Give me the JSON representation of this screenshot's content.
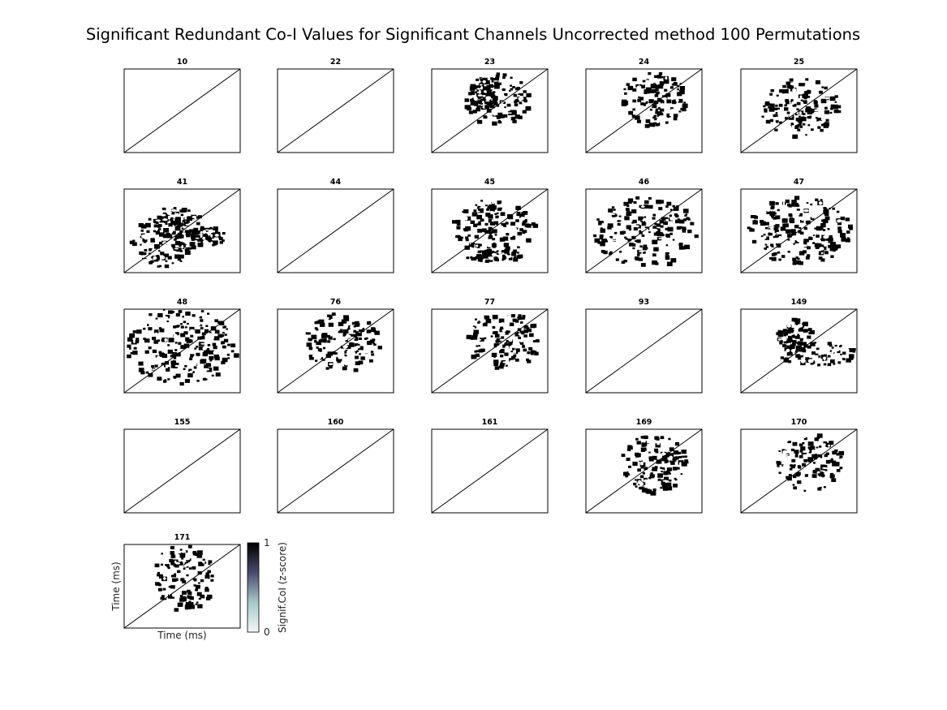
{
  "figure": {
    "title": "Significant Redundant Co-I Values for Significant Channels Uncorrected method 100 Permutations"
  },
  "chart_data": {
    "type": "heatmap",
    "title": "Significant Redundant Co-I Values for Significant Channels Uncorrected method 100 Permutations",
    "xlabel": "Time (ms)",
    "ylabel": "Time (ms)",
    "diagonal_line": true,
    "panels": [
      {
        "channel": "10",
        "significant": false
      },
      {
        "channel": "22",
        "significant": false
      },
      {
        "channel": "23",
        "significant": true
      },
      {
        "channel": "24",
        "significant": true
      },
      {
        "channel": "25",
        "significant": true
      },
      {
        "channel": "41",
        "significant": true
      },
      {
        "channel": "44",
        "significant": false
      },
      {
        "channel": "45",
        "significant": true
      },
      {
        "channel": "46",
        "significant": true
      },
      {
        "channel": "47",
        "significant": true
      },
      {
        "channel": "48",
        "significant": true
      },
      {
        "channel": "76",
        "significant": true
      },
      {
        "channel": "77",
        "significant": true
      },
      {
        "channel": "93",
        "significant": false
      },
      {
        "channel": "149",
        "significant": true
      },
      {
        "channel": "155",
        "significant": false
      },
      {
        "channel": "160",
        "significant": false
      },
      {
        "channel": "161",
        "significant": false
      },
      {
        "channel": "169",
        "significant": true
      },
      {
        "channel": "170",
        "significant": true
      },
      {
        "channel": "171",
        "significant": true
      }
    ],
    "colorbar": {
      "label": "Signif.CoI (z-score)",
      "ticks": [
        "0",
        "1"
      ],
      "range": [
        0,
        1
      ],
      "colors": [
        "#f2f8f7",
        "#a8c8c8",
        "#4a4a6e",
        "#000000"
      ]
    }
  }
}
